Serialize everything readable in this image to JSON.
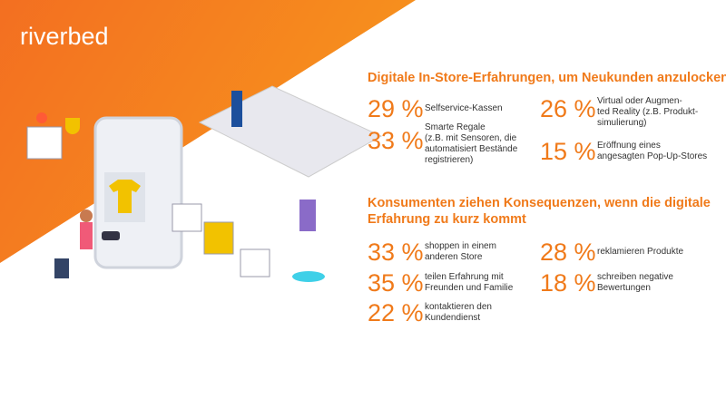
{
  "brand": "riverbed",
  "sections": [
    {
      "title": [
        "Digitale In-Store-Erfahrungen, um Neukunden anzulocken?"
      ],
      "items": [
        {
          "value": "29 %",
          "label": [
            "Selfservice-Kassen"
          ]
        },
        {
          "value": "26 %",
          "label": [
            "Virtual oder Augmen-",
            "ted Reality (z.B. Produkt-",
            "simulierung)"
          ]
        },
        {
          "value": "33 %",
          "label": [
            "Smarte Regale",
            "(z.B. mit Sensoren, die",
            "automatisiert Bestände",
            "registrieren)"
          ]
        },
        {
          "value": "15 %",
          "label": [
            "Eröffnung eines",
            "angesagten Pop-Up-Stores"
          ]
        }
      ]
    },
    {
      "title": [
        "Konsumenten ziehen Konsequenzen, wenn die digitale",
        "Erfahrung zu kurz kommt"
      ],
      "items": [
        {
          "value": "33 %",
          "label": [
            "shoppen in einem",
            "anderen Store"
          ]
        },
        {
          "value": "28 %",
          "label": [
            "reklamieren Produkte"
          ]
        },
        {
          "value": "35 %",
          "label": [
            "teilen Erfahrung mit",
            "Freunden und Familie"
          ]
        },
        {
          "value": "18 %",
          "label": [
            "schreiben negative",
            "Bewertungen"
          ]
        },
        {
          "value": "22 %",
          "label": [
            "kontaktieren den",
            "Kundendienst"
          ]
        }
      ]
    }
  ]
}
